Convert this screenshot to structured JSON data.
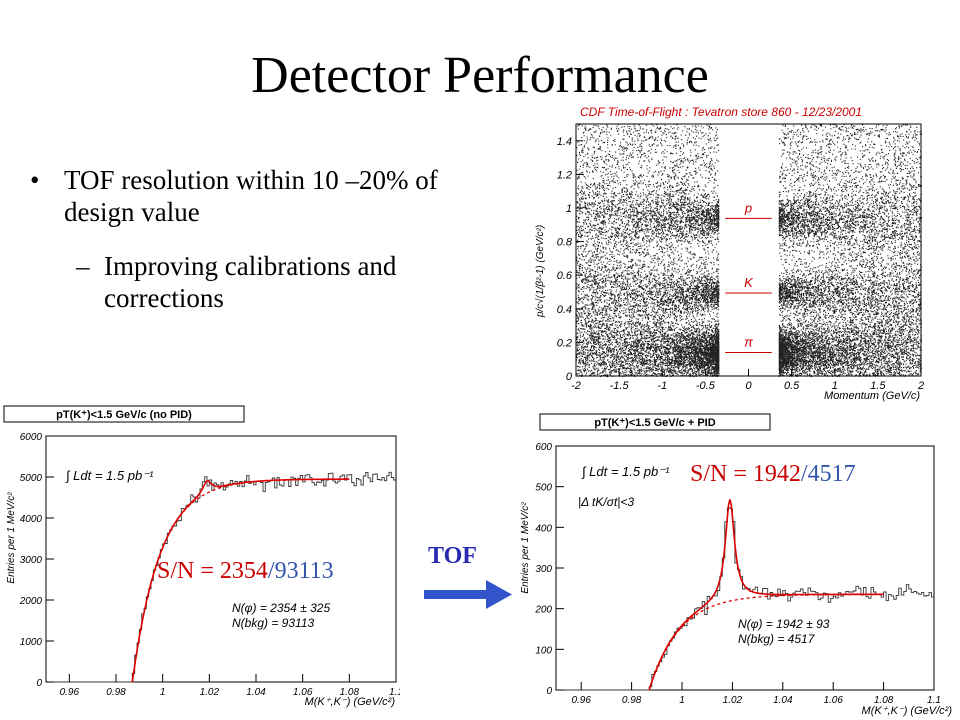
{
  "slide": {
    "title": "Detector Performance",
    "bullets": [
      {
        "marker": "•",
        "text": "TOF resolution within 10 –20% of design value"
      },
      {
        "marker": "–",
        "text": "Improving calibrations and corrections"
      }
    ],
    "arrow_label": "TOF",
    "colors": {
      "arrow": "#3355cc",
      "signal": "#cc0000",
      "background_num": "#3355aa",
      "fit": "#dd0000"
    }
  },
  "chart_data": [
    {
      "type": "scatter",
      "title": "CDF Time-of-Flight : Tevatron store 860 - 12/23/2001",
      "xlabel": "Momentum (GeV/c)",
      "ylabel": "p/c√(1/β²-1) (GeV/c²)",
      "xlim": [
        -2,
        2
      ],
      "ylim": [
        0,
        1.5
      ],
      "xticks": [
        "-2",
        "-1.5",
        "-1",
        "-0.5",
        "0",
        "0.5",
        "1",
        "1.5",
        "2"
      ],
      "yticks": [
        "0",
        "0.2",
        "0.4",
        "0.6",
        "0.8",
        "1",
        "1.2",
        "1.4"
      ],
      "bands": [
        {
          "name": "p",
          "label": "p",
          "mass": 0.938
        },
        {
          "name": "K",
          "label": "K",
          "mass": 0.494
        },
        {
          "name": "pi",
          "label": "π",
          "mass": 0.14
        }
      ],
      "gap": [
        -0.35,
        0.35
      ]
    },
    {
      "type": "line",
      "header": "pT(K⁺)<1.5 GeV/c (no PID)",
      "lumi": "∫ Ldt = 1.5 pb⁻¹",
      "sn_text": {
        "prefix": "S/N = ",
        "signal": "2354",
        "sep": "/",
        "background": "93113"
      },
      "fit_n_phi": "N(φ) =  2354 ± 325",
      "fit_n_bkg": "N(bkg) = 93113",
      "xlabel": "M(K⁺,K⁻) (GeV/c²)",
      "ylabel": "Entries per 1 MeV/c²",
      "xlim": [
        0.95,
        1.1
      ],
      "ylim": [
        0,
        6000
      ],
      "xticks": [
        "0.96",
        "0.98",
        "1",
        "1.02",
        "1.04",
        "1.06",
        "1.08",
        "1.1"
      ],
      "yticks": [
        "0",
        "1000",
        "2000",
        "3000",
        "4000",
        "5000",
        "6000"
      ],
      "threshold": 0.987,
      "peak": {
        "x": 1.019,
        "height": 300
      },
      "plateau": 4950
    },
    {
      "type": "line",
      "header": "pT(K⁺)<1.5 GeV/c + PID",
      "lumi": "∫ Ldt = 1.5 pb⁻¹",
      "cut": "|Δ tK/σt|<3",
      "sn_text": {
        "prefix": "S/N = ",
        "signal": "1942",
        "sep": "/",
        "background": "4517"
      },
      "fit_n_phi": "N(φ) =  1942 ± 93",
      "fit_n_bkg": "N(bkg) = 4517",
      "xlabel": "M(K⁺,K⁻) (GeV/c²)",
      "ylabel": "Entries per 1 MeV/c²",
      "xlim": [
        0.95,
        1.1
      ],
      "ylim": [
        0,
        600
      ],
      "xticks": [
        "0.96",
        "0.98",
        "1",
        "1.02",
        "1.04",
        "1.06",
        "1.08",
        "1.1"
      ],
      "yticks": [
        "0",
        "100",
        "200",
        "300",
        "400",
        "500",
        "600"
      ],
      "threshold": 0.987,
      "peak": {
        "x": 1.019,
        "height": 250
      },
      "plateau": 235
    }
  ]
}
